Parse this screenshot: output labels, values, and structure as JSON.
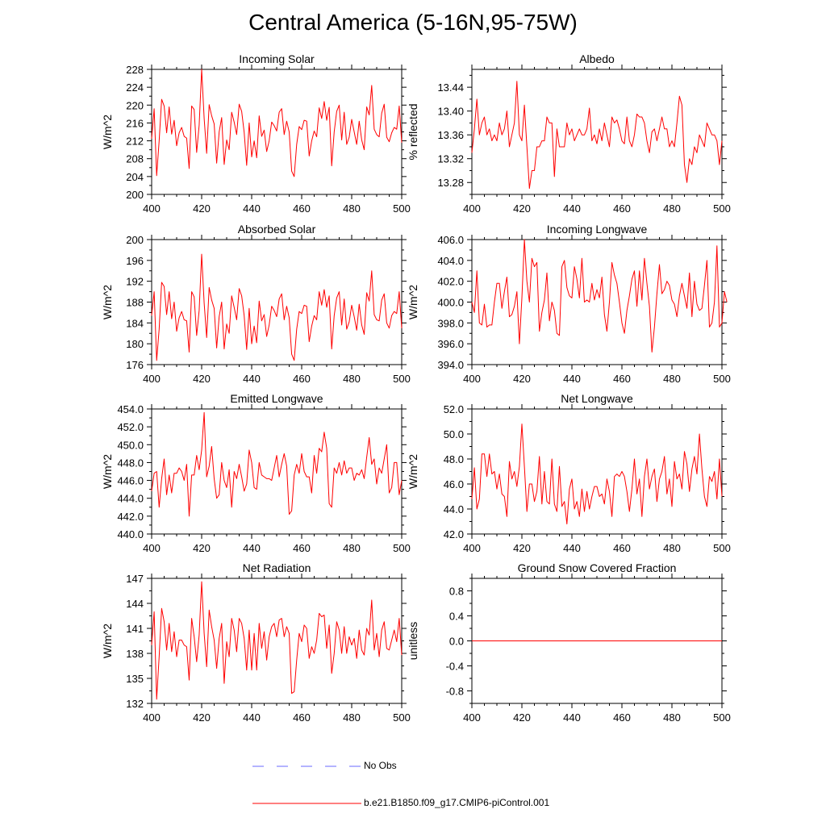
{
  "title": "Central America (5-16N,95-75W)",
  "colors": {
    "model": "#ff0000",
    "obs": "#6a6aff"
  },
  "legend": {
    "obs_label": "No Obs",
    "model_label": "b.e21.B1850.f09_g17.CMIP6-piControl.001"
  },
  "chart_data": [
    {
      "id": "incoming-solar",
      "type": "line",
      "title": "Incoming Solar",
      "ylabel": "W/m^2",
      "xlim": [
        400,
        500
      ],
      "ylim": [
        200,
        228
      ],
      "xticks": [
        400,
        420,
        440,
        460,
        480,
        500
      ],
      "yticks": [
        200,
        204,
        208,
        212,
        216,
        220,
        224,
        228
      ],
      "ytick_labels": [
        "200",
        "204",
        "208",
        "212",
        "216",
        "220",
        "224",
        "228"
      ],
      "x_start": 400,
      "x_step": 1,
      "values": [
        212.5,
        219.2,
        204.2,
        212.0,
        221.3,
        219.8,
        213.8,
        219.6,
        213.5,
        216.6,
        210.9,
        213.8,
        215.0,
        213.0,
        212.6,
        205.8,
        219.8,
        219.0,
        209.4,
        215.5,
        228.0,
        217.0,
        209.2,
        220.1,
        217.6,
        215.8,
        207.0,
        214.0,
        217.2,
        206.7,
        212.2,
        210.0,
        218.4,
        216.2,
        213.4,
        220.2,
        218.6,
        213.9,
        206.5,
        216.0,
        208.4,
        212.0,
        208.2,
        217.6,
        213.0,
        214.4,
        209.6,
        212.0,
        216.2,
        215.4,
        214.2,
        218.4,
        219.2,
        213.4,
        216.4,
        214.0,
        205.2,
        204.0,
        211.2,
        215.2,
        214.5,
        216.6,
        216.4,
        208.6,
        212.0,
        214.2,
        212.9,
        219.4,
        217.0,
        220.8,
        216.6,
        219.5,
        206.4,
        214.0,
        218.6,
        220.0,
        212.2,
        218.4,
        211.2,
        212.8,
        216.8,
        214.0,
        211.2,
        216.4,
        212.2,
        210.0,
        219.6,
        217.8,
        224.4,
        214.6,
        213.4,
        212.9,
        218.2,
        220.2,
        212.8,
        211.8,
        213.8,
        215.0,
        214.6,
        219.8,
        211.6
      ]
    },
    {
      "id": "absorbed-solar",
      "type": "line",
      "title": "Absorbed Solar",
      "ylabel": "W/m^2",
      "xlim": [
        400,
        500
      ],
      "ylim": [
        176,
        200
      ],
      "xticks": [
        400,
        420,
        440,
        460,
        480,
        500
      ],
      "yticks": [
        176,
        180,
        184,
        188,
        192,
        196,
        200
      ],
      "ytick_labels": [
        "176",
        "180",
        "184",
        "188",
        "192",
        "196",
        "200"
      ],
      "x_start": 400,
      "x_step": 1,
      "values": [
        185.4,
        190.0,
        176.8,
        182.8,
        191.8,
        191.0,
        185.6,
        190.0,
        184.8,
        188.0,
        182.4,
        185.0,
        186.2,
        184.6,
        184.4,
        178.4,
        190.0,
        189.0,
        181.6,
        186.4,
        197.2,
        187.8,
        181.2,
        190.8,
        188.4,
        186.8,
        179.2,
        185.2,
        188.0,
        179.0,
        183.8,
        182.0,
        189.2,
        187.0,
        184.6,
        190.6,
        189.2,
        185.4,
        178.9,
        186.8,
        180.0,
        183.4,
        180.2,
        188.2,
        184.4,
        185.6,
        181.4,
        183.6,
        187.2,
        186.4,
        185.2,
        188.6,
        189.6,
        184.6,
        187.2,
        185.0,
        178.0,
        176.8,
        182.8,
        186.2,
        185.8,
        187.4,
        187.2,
        180.4,
        183.4,
        185.4,
        184.6,
        190.0,
        187.4,
        190.4,
        187.0,
        189.2,
        179.0,
        185.4,
        188.8,
        190.0,
        183.6,
        188.6,
        182.8,
        184.2,
        187.4,
        185.2,
        182.6,
        187.6,
        183.6,
        181.8,
        189.8,
        188.2,
        194.0,
        185.6,
        184.6,
        184.4,
        188.4,
        189.6,
        184.0,
        183.0,
        185.4,
        186.2,
        185.8,
        190.0,
        183.0
      ]
    },
    {
      "id": "emitted-longwave",
      "type": "line",
      "title": "Emitted Longwave",
      "ylabel": "W/m^2",
      "xlim": [
        400,
        500
      ],
      "ylim": [
        440,
        454
      ],
      "xticks": [
        400,
        420,
        440,
        460,
        480,
        500
      ],
      "yticks": [
        440,
        442,
        444,
        446,
        448,
        450,
        452,
        454
      ],
      "ytick_labels": [
        "440.0",
        "442.0",
        "444.0",
        "446.0",
        "448.0",
        "450.0",
        "452.0",
        "454.0"
      ],
      "x_start": 400,
      "x_step": 1,
      "values": [
        444.8,
        446.8,
        447.0,
        443.0,
        446.2,
        448.4,
        444.4,
        446.6,
        444.6,
        446.8,
        446.8,
        447.4,
        447.0,
        446.0,
        447.8,
        442.0,
        446.6,
        446.6,
        448.8,
        447.2,
        449.4,
        453.6,
        446.4,
        447.6,
        449.8,
        446.2,
        444.0,
        444.4,
        448.0,
        446.0,
        445.2,
        447.2,
        443.0,
        447.0,
        446.2,
        447.8,
        446.4,
        444.8,
        445.6,
        449.4,
        448.0,
        445.2,
        445.0,
        448.0,
        446.6,
        446.4,
        446.2,
        446.2,
        446.0,
        447.4,
        448.8,
        446.4,
        447.8,
        449.0,
        447.6,
        442.2,
        442.6,
        446.6,
        447.8,
        446.8,
        449.0,
        447.0,
        446.4,
        446.4,
        444.6,
        448.8,
        446.8,
        449.6,
        449.2,
        451.4,
        449.6,
        443.4,
        443.0,
        447.4,
        446.8,
        448.0,
        446.6,
        448.2,
        446.8,
        447.4,
        447.4,
        446.0,
        446.8,
        446.6,
        447.2,
        446.2,
        448.6,
        450.8,
        447.8,
        448.4,
        445.6,
        447.4,
        446.8,
        448.4,
        450.0,
        444.6,
        445.2,
        448.0,
        448.0,
        444.4,
        446.0
      ]
    },
    {
      "id": "net-radiation",
      "type": "line",
      "title": "Net Radiation",
      "ylabel": "W/m^2",
      "xlim": [
        400,
        500
      ],
      "ylim": [
        132,
        147
      ],
      "xticks": [
        400,
        420,
        440,
        460,
        480,
        500
      ],
      "yticks": [
        132,
        135,
        138,
        141,
        144,
        147
      ],
      "ytick_labels": [
        "132",
        "135",
        "138",
        "141",
        "144",
        "147"
      ],
      "x_start": 400,
      "x_step": 1,
      "values": [
        139.0,
        143.0,
        132.5,
        137.6,
        143.4,
        141.8,
        138.4,
        141.6,
        138.2,
        140.6,
        137.6,
        139.6,
        139.6,
        139.0,
        138.8,
        134.8,
        142.2,
        140.0,
        137.0,
        140.2,
        146.6,
        140.4,
        136.4,
        143.2,
        141.2,
        139.6,
        136.2,
        139.8,
        141.6,
        134.4,
        139.4,
        137.6,
        142.2,
        140.8,
        138.2,
        142.2,
        141.6,
        139.8,
        136.0,
        140.8,
        136.0,
        140.4,
        136.0,
        141.6,
        138.6,
        140.6,
        137.2,
        140.0,
        141.2,
        141.6,
        140.0,
        142.0,
        142.2,
        140.0,
        141.2,
        140.4,
        133.2,
        133.4,
        137.2,
        140.4,
        139.4,
        141.4,
        141.0,
        137.4,
        138.8,
        138.0,
        139.6,
        142.8,
        142.4,
        142.6,
        138.6,
        141.4,
        135.6,
        138.0,
        141.8,
        140.8,
        138.0,
        141.2,
        138.0,
        140.0,
        139.0,
        139.8,
        137.4,
        140.8,
        138.4,
        137.8,
        141.0,
        140.2,
        144.4,
        138.4,
        140.4,
        137.6,
        140.8,
        141.8,
        138.6,
        138.4,
        139.6,
        140.8,
        139.4,
        142.2,
        137.8
      ]
    },
    {
      "id": "albedo",
      "type": "line",
      "title": "Albedo",
      "ylabel": "% reflected",
      "xlim": [
        400,
        500
      ],
      "ylim": [
        13.26,
        13.47
      ],
      "xticks": [
        400,
        420,
        440,
        460,
        480,
        500
      ],
      "yticks": [
        13.28,
        13.32,
        13.36,
        13.4,
        13.44
      ],
      "ytick_labels": [
        "13.28",
        "13.32",
        "13.36",
        "13.40",
        "13.44"
      ],
      "x_start": 400,
      "x_step": 1,
      "values": [
        13.33,
        13.37,
        13.42,
        13.36,
        13.38,
        13.39,
        13.36,
        13.37,
        13.35,
        13.36,
        13.35,
        13.38,
        13.36,
        13.37,
        13.4,
        13.34,
        13.36,
        13.38,
        13.45,
        13.36,
        13.35,
        13.41,
        13.34,
        13.27,
        13.3,
        13.3,
        13.34,
        13.34,
        13.35,
        13.35,
        13.39,
        13.38,
        13.38,
        13.29,
        13.37,
        13.34,
        13.34,
        13.34,
        13.38,
        13.36,
        13.37,
        13.35,
        13.36,
        13.37,
        13.36,
        13.36,
        13.37,
        13.405,
        13.35,
        13.36,
        13.345,
        13.37,
        13.35,
        13.38,
        13.36,
        13.34,
        13.39,
        13.38,
        13.385,
        13.37,
        13.35,
        13.345,
        13.39,
        13.35,
        13.34,
        13.36,
        13.395,
        13.39,
        13.39,
        13.38,
        13.35,
        13.33,
        13.365,
        13.37,
        13.35,
        13.37,
        13.39,
        13.37,
        13.37,
        13.34,
        13.35,
        13.34,
        13.38,
        13.425,
        13.41,
        13.31,
        13.28,
        13.32,
        13.31,
        13.34,
        13.33,
        13.36,
        13.35,
        13.34,
        13.38,
        13.37,
        13.36,
        13.36,
        13.35,
        13.31,
        13.35
      ]
    },
    {
      "id": "incoming-longwave",
      "type": "line",
      "title": "Incoming Longwave",
      "ylabel": "W/m^2",
      "xlim": [
        400,
        500
      ],
      "ylim": [
        394,
        406
      ],
      "xticks": [
        400,
        420,
        440,
        460,
        480,
        500
      ],
      "yticks": [
        394,
        396,
        398,
        400,
        402,
        404,
        406
      ],
      "ytick_labels": [
        "394.0",
        "396.0",
        "398.0",
        "400.0",
        "402.0",
        "404.0",
        "406.0"
      ],
      "x_start": 400,
      "x_step": 1,
      "values": [
        400.0,
        399.0,
        403.0,
        398.0,
        397.8,
        399.8,
        397.6,
        397.8,
        397.8,
        400.0,
        401.8,
        401.8,
        399.4,
        401.0,
        402.4,
        398.6,
        398.8,
        399.6,
        401.0,
        396.0,
        400.4,
        406.0,
        402.0,
        400.0,
        404.2,
        403.4,
        403.8,
        397.2,
        399.0,
        400.2,
        402.8,
        398.2,
        400.0,
        399.2,
        397.0,
        396.8,
        403.4,
        404.0,
        401.4,
        400.6,
        400.4,
        403.4,
        402.2,
        400.4,
        404.2,
        400.0,
        400.2,
        400.0,
        401.8,
        400.2,
        401.2,
        400.4,
        402.4,
        398.8,
        397.2,
        400.0,
        403.8,
        402.6,
        401.8,
        400.0,
        398.0,
        397.0,
        399.2,
        400.6,
        402.2,
        403.0,
        399.6,
        403.0,
        400.2,
        404.2,
        401.8,
        399.6,
        395.2,
        397.6,
        400.8,
        403.6,
        400.8,
        401.2,
        402.0,
        401.6,
        400.2,
        399.8,
        398.6,
        400.6,
        401.8,
        400.6,
        399.4,
        402.8,
        398.6,
        402.0,
        399.8,
        399.2,
        399.4,
        401.6,
        404.0,
        397.6,
        398.0,
        400.0,
        405.4,
        397.6,
        398.0,
        401.0,
        400.0
      ]
    },
    {
      "id": "net-longwave",
      "type": "line",
      "title": "Net Longwave",
      "ylabel": "W/m^2",
      "xlim": [
        400,
        500
      ],
      "ylim": [
        42,
        52
      ],
      "xticks": [
        400,
        420,
        440,
        460,
        480,
        500
      ],
      "yticks": [
        42,
        44,
        46,
        48,
        50,
        52
      ],
      "ytick_labels": [
        "42.0",
        "44.0",
        "46.0",
        "48.0",
        "50.0",
        "52.0"
      ],
      "x_start": 400,
      "x_step": 1,
      "values": [
        44.8,
        47.3,
        44.0,
        44.8,
        48.4,
        48.4,
        46.6,
        48.4,
        46.8,
        47.0,
        45.6,
        46.8,
        45.2,
        45.0,
        43.4,
        47.8,
        46.4,
        47.0,
        45.8,
        47.4,
        50.8,
        47.4,
        43.8,
        46.0,
        46.0,
        44.6,
        45.4,
        48.2,
        44.4,
        47.0,
        44.6,
        44.4,
        48.0,
        44.4,
        43.8,
        47.4,
        44.2,
        44.6,
        42.8,
        45.6,
        46.4,
        44.0,
        44.6,
        43.4,
        45.6,
        43.8,
        45.4,
        44.0,
        45.0,
        45.8,
        45.8,
        45.0,
        45.2,
        44.4,
        46.4,
        45.4,
        43.4,
        46.6,
        46.8,
        46.6,
        47.0,
        46.6,
        45.4,
        43.8,
        45.6,
        48.0,
        45.2,
        46.4,
        43.4,
        46.6,
        48.0,
        45.6,
        46.6,
        47.2,
        44.6,
        46.4,
        47.0,
        48.2,
        45.2,
        46.4,
        44.2,
        47.8,
        46.4,
        46.8,
        45.6,
        48.6,
        47.6,
        45.4,
        47.2,
        48.2,
        46.8,
        50.0,
        47.2,
        45.0,
        44.2,
        46.6,
        46.2,
        47.0,
        44.8,
        48.0,
        45.0
      ]
    },
    {
      "id": "ground-snow",
      "type": "line",
      "title": "Ground Snow Covered Fraction",
      "ylabel": "unitless",
      "xlim": [
        400,
        500
      ],
      "ylim": [
        -1.0,
        1.0
      ],
      "xticks": [
        400,
        420,
        440,
        460,
        480,
        500
      ],
      "yticks": [
        -0.8,
        -0.4,
        0.0,
        0.4,
        0.8
      ],
      "ytick_labels": [
        "-0.8",
        "-0.4",
        "0.0",
        "0.4",
        "0.8"
      ],
      "x_start": 400,
      "x_step": 1,
      "values": [
        0,
        0,
        0,
        0,
        0,
        0,
        0,
        0,
        0,
        0,
        0,
        0,
        0,
        0,
        0,
        0,
        0,
        0,
        0,
        0,
        0,
        0,
        0,
        0,
        0,
        0,
        0,
        0,
        0,
        0,
        0,
        0,
        0,
        0,
        0,
        0,
        0,
        0,
        0,
        0,
        0,
        0,
        0,
        0,
        0,
        0,
        0,
        0,
        0,
        0,
        0,
        0,
        0,
        0,
        0,
        0,
        0,
        0,
        0,
        0,
        0,
        0,
        0,
        0,
        0,
        0,
        0,
        0,
        0,
        0,
        0,
        0,
        0,
        0,
        0,
        0,
        0,
        0,
        0,
        0,
        0,
        0,
        0,
        0,
        0,
        0,
        0,
        0,
        0,
        0,
        0,
        0,
        0,
        0,
        0,
        0,
        0,
        0,
        0,
        0,
        0
      ]
    }
  ]
}
